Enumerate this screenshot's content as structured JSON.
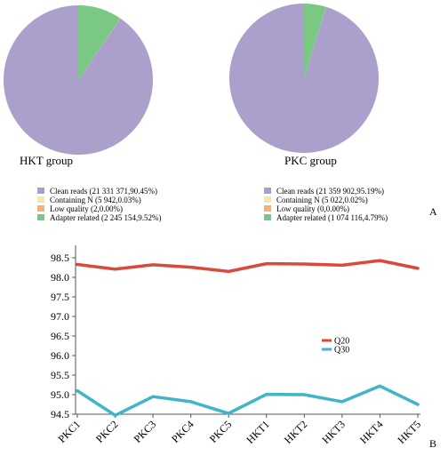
{
  "panel_labels": {
    "a": "A",
    "b": "B"
  },
  "colors": {
    "clean": "#ab9fcc",
    "containing_n": "#f3e9a9",
    "low_quality": "#f2b07f",
    "adapter": "#7bc784",
    "q20": "#d9493c",
    "q30": "#40b4c8",
    "axis": "#555555"
  },
  "chart_data": [
    {
      "type": "pie",
      "title": "HKT group",
      "legend_position": "below",
      "slices": [
        {
          "name": "Clean reads",
          "value": 90.45,
          "legend": "Clean reads (21 331 371,90.45%)"
        },
        {
          "name": "Containing N",
          "value": 0.03,
          "legend": "Containing N (5 942,0.03%)"
        },
        {
          "name": "Low quality",
          "value": 0.0,
          "legend": "Low quality (2,0.00%)"
        },
        {
          "name": "Adapter related",
          "value": 9.52,
          "legend": "Adapter related (2 245 154,9.52%)"
        }
      ]
    },
    {
      "type": "pie",
      "title": "PKC group",
      "legend_position": "below",
      "slices": [
        {
          "name": "Clean reads",
          "value": 95.19,
          "legend": "Clean reads (21 359 902,95.19%)"
        },
        {
          "name": "Containing N",
          "value": 0.02,
          "legend": "Containing N (5 022,0.02%)"
        },
        {
          "name": "Low quality",
          "value": 0.0,
          "legend": "Low quality (0,0.00%)"
        },
        {
          "name": "Adapter related",
          "value": 4.79,
          "legend": "Adapter related (1 074 116,4.79%)"
        }
      ]
    },
    {
      "type": "line",
      "categories": [
        "PKC1",
        "PKC2",
        "PKC3",
        "PKC4",
        "PKC5",
        "HKT1",
        "HKT2",
        "HKT3",
        "HKT4",
        "HKT5"
      ],
      "series": [
        {
          "name": "Q20",
          "values": [
            98.33,
            98.21,
            98.32,
            98.26,
            98.15,
            98.35,
            98.34,
            98.31,
            98.43,
            98.23
          ]
        },
        {
          "name": "Q30",
          "values": [
            95.1,
            94.47,
            94.95,
            94.82,
            94.52,
            95.01,
            95.0,
            94.82,
            95.22,
            94.75
          ]
        }
      ],
      "ylim": [
        94.5,
        98.5
      ],
      "yticks": [
        "94.5",
        "95.0",
        "95.5",
        "96.0",
        "96.5",
        "97.0",
        "97.5",
        "98.0",
        "98.5"
      ],
      "legend_position": "right",
      "grid": false
    }
  ]
}
